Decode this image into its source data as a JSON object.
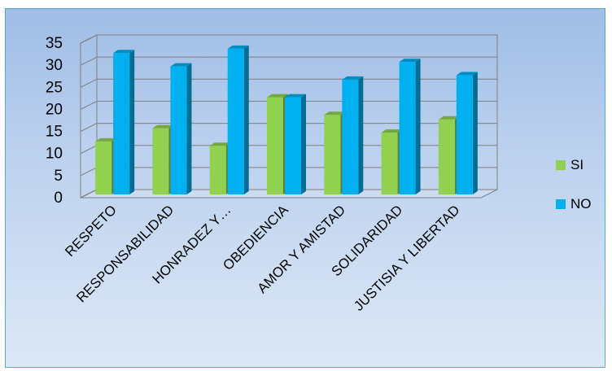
{
  "chart_data": {
    "type": "bar",
    "title": "",
    "xlabel": "",
    "ylabel": "",
    "categories": [
      "RESPETO",
      "RESPONSABILIDAD",
      "HONRADEZ  Y…",
      "OBEDIENCIA",
      "AMOR Y AMISTAD",
      "SOLIDARIDAD",
      "JUSTISIA Y LIBERTAD"
    ],
    "series": [
      {
        "name": "SI",
        "values": [
          12,
          15,
          11,
          22,
          18,
          14,
          17
        ],
        "color": "#92d050"
      },
      {
        "name": "NO",
        "values": [
          32,
          29,
          33,
          22,
          26,
          30,
          27
        ],
        "color": "#00b0f0"
      }
    ],
    "ylim": [
      0,
      35
    ],
    "yticks": [
      0,
      5,
      10,
      15,
      20,
      25,
      30,
      35
    ],
    "grid": true,
    "legend_position": "right",
    "style": "3d-column"
  }
}
